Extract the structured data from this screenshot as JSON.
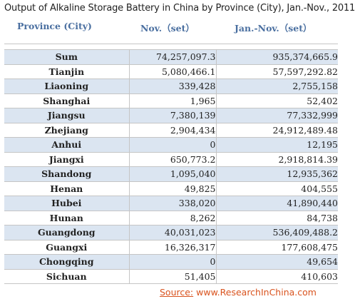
{
  "title": "Output of Alkaline Storage Battery in China by Province (City), Jan.-Nov.,  2011",
  "source": {
    "label": "Source:",
    "site": "www.ResearchInChina.com"
  },
  "chart_data": {
    "type": "table",
    "columns": [
      "Province (City)",
      "Nov.（set）",
      "Jan.-Nov.（set）"
    ],
    "rows": [
      {
        "province": "Sum",
        "nov": "74,257,097.3",
        "jan_nov": "935,374,665.9"
      },
      {
        "province": "Tianjin",
        "nov": "5,080,466.1",
        "jan_nov": "57,597,292.82"
      },
      {
        "province": "Liaoning",
        "nov": "339,428",
        "jan_nov": "2,755,158"
      },
      {
        "province": "Shanghai",
        "nov": "1,965",
        "jan_nov": "52,402"
      },
      {
        "province": "Jiangsu",
        "nov": "7,380,139",
        "jan_nov": "77,332,999"
      },
      {
        "province": "Zhejiang",
        "nov": "2,904,434",
        "jan_nov": "24,912,489.48"
      },
      {
        "province": "Anhui",
        "nov": "0",
        "jan_nov": "12,195"
      },
      {
        "province": "Jiangxi",
        "nov": "650,773.2",
        "jan_nov": "2,918,814.39"
      },
      {
        "province": "Shandong",
        "nov": "1,095,040",
        "jan_nov": "12,935,362"
      },
      {
        "province": "Henan",
        "nov": "49,825",
        "jan_nov": "404,555"
      },
      {
        "province": "Hubei",
        "nov": "338,020",
        "jan_nov": "41,890,440"
      },
      {
        "province": "Hunan",
        "nov": "8,262",
        "jan_nov": "84,738"
      },
      {
        "province": "Guangdong",
        "nov": "40,031,023",
        "jan_nov": "536,409,488.2"
      },
      {
        "province": "Guangxi",
        "nov": "16,326,317",
        "jan_nov": "177,608,475"
      },
      {
        "province": "Chongqing",
        "nov": "0",
        "jan_nov": "49,654"
      },
      {
        "province": "Sichuan",
        "nov": "51,405",
        "jan_nov": "410,603"
      }
    ]
  },
  "colors": {
    "header_text": "#4a6fa0",
    "row_shade": "#dbe5f1",
    "source_text": "#d9531e"
  }
}
